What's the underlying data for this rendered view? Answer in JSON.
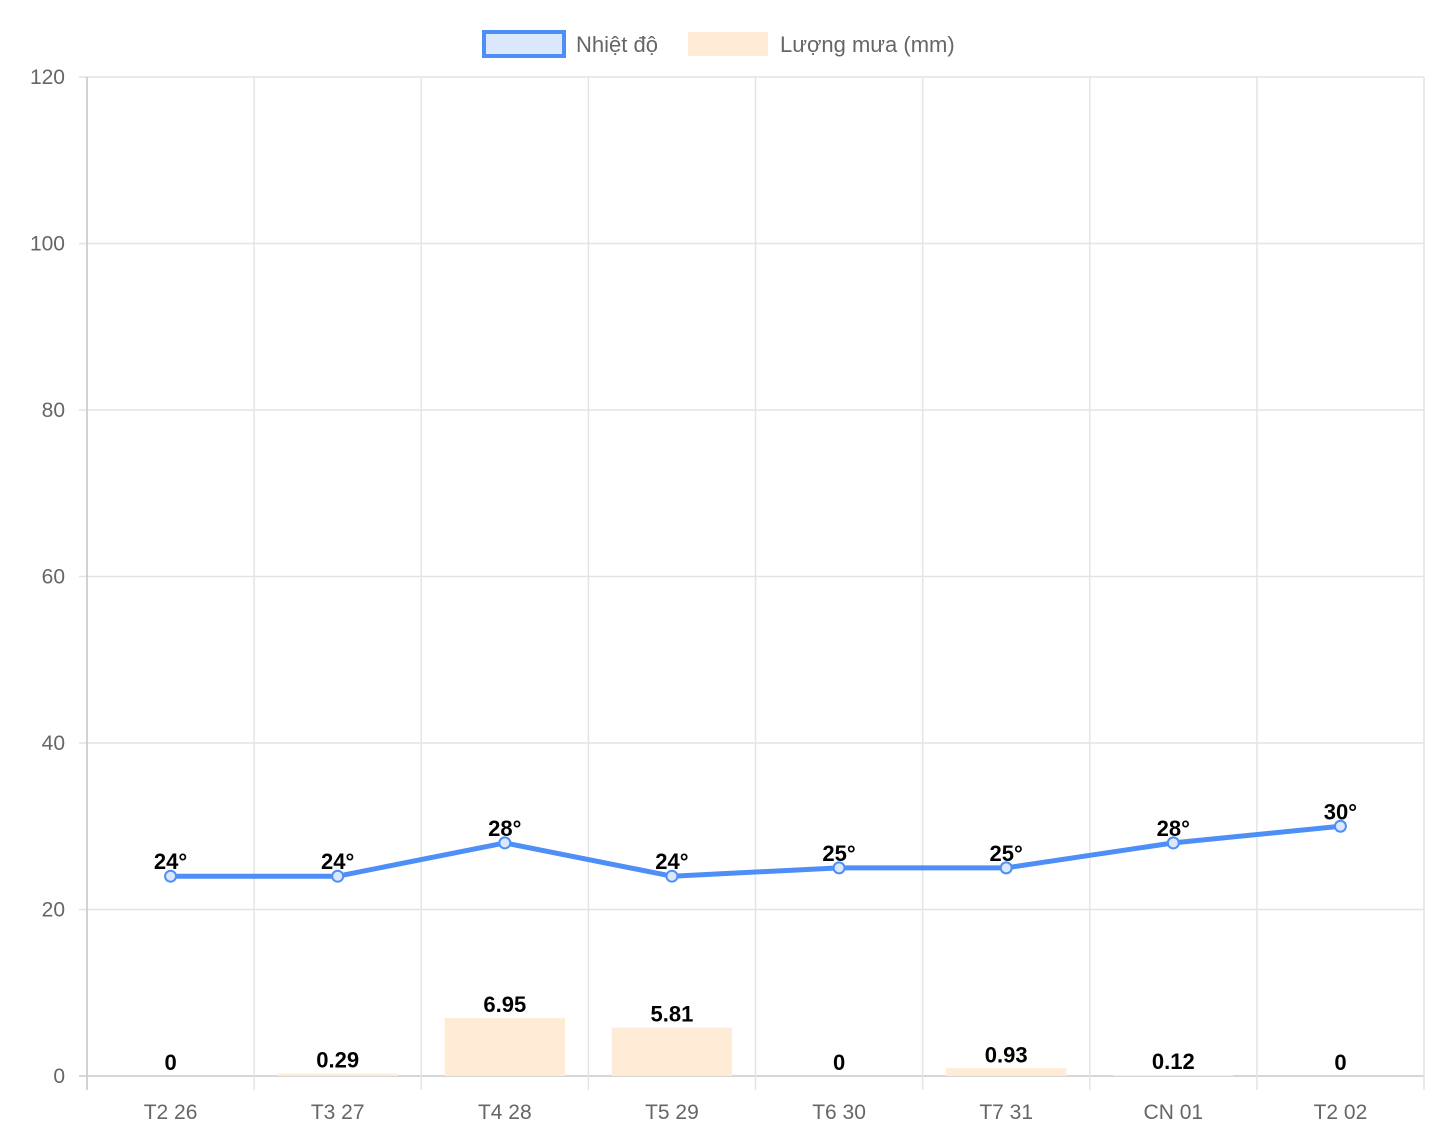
{
  "chart_data": {
    "type": "bar",
    "categories": [
      "T2 26",
      "T3 27",
      "T4 28",
      "T5 29",
      "T6 30",
      "T7 31",
      "CN 01",
      "T2 02"
    ],
    "series": [
      {
        "name": "Nhiệt độ",
        "type": "line",
        "values": [
          24,
          24,
          28,
          24,
          25,
          25,
          28,
          30
        ],
        "labels": [
          "24°",
          "24°",
          "28°",
          "24°",
          "25°",
          "25°",
          "28°",
          "30°"
        ],
        "color": "#4e8ef7",
        "fill": "#dbe7fb"
      },
      {
        "name": "Lượng mưa (mm)",
        "type": "bar",
        "values": [
          0,
          0.29,
          6.95,
          5.81,
          0,
          0.93,
          0.12,
          0
        ],
        "labels": [
          "0",
          "0.29",
          "6.95",
          "5.81",
          "0",
          "0.93",
          "0.12",
          "0"
        ],
        "color": "#ffebd6"
      }
    ],
    "y_ticks": [
      "0",
      "20",
      "40",
      "60",
      "80",
      "100",
      "120"
    ],
    "ylim": [
      0,
      120
    ],
    "grid": true,
    "legend": "top-center"
  }
}
